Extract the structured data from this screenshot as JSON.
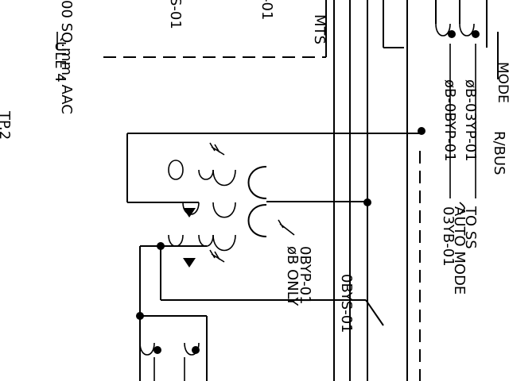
{
  "labels": {
    "schedule_fragment": "ULE 4",
    "conductor_spec": "00 SQ.mm. AAC",
    "page_ref": "TP.2",
    "left_edge_a": "S-01",
    "left_edge_b": "-01",
    "mts": "MTS",
    "mode_fragment": "MODE",
    "top_right_fragment": "R/BUS",
    "bus_03yp": "øB-03YP-01",
    "bus_0byp": "øB-0BYP-01",
    "to_ss": "TO SS",
    "auto_mode": "AUTO MODE",
    "ref_03yb": "03YB-01",
    "bypass_id": "0BYP-01",
    "phase_b_only": "øB ONLY",
    "switch_id": "0BYS-01"
  },
  "colors": {
    "line": "#000000",
    "background": "#ffffff"
  }
}
